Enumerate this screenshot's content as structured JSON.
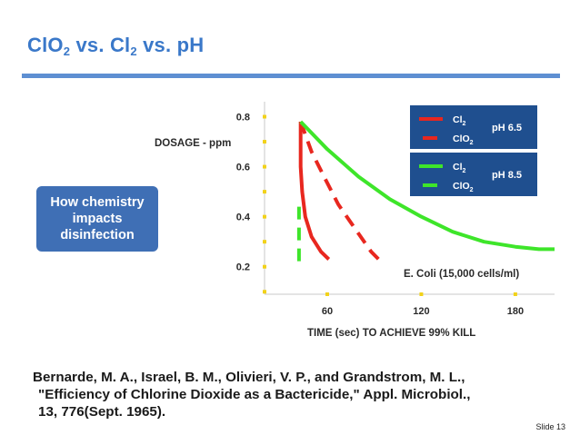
{
  "slide": {
    "title_parts": [
      "ClO",
      "2",
      " vs. Cl",
      "2",
      " vs. pH"
    ],
    "callout": [
      "How chemistry",
      "impacts",
      "disinfection"
    ],
    "citation": [
      "Bernarde, M. A., Israel, B. M., Olivieri, V. P., and Grandstrom, M. L.,",
      "\"Efficiency of Chlorine Dioxide as a Bactericide,\" Appl. Microbiol.,",
      "13, 776(Sept. 1965)."
    ],
    "slide_number": "Slide 13"
  },
  "chart_data": {
    "type": "line",
    "ylabel": "DOSAGE - ppm",
    "xlabel": "TIME (sec) TO ACHIEVE 99% KILL",
    "annotation": "E. Coli (15,000 cells/ml)",
    "x_ticks": [
      60,
      120,
      180
    ],
    "x_tick_labels": [
      "60",
      "120",
      "180"
    ],
    "y_ticks": [
      0.2,
      0.4,
      0.6,
      0.8
    ],
    "y_tick_labels": [
      "0.2",
      "0.4",
      "0.6",
      "0.8"
    ],
    "xlim": [
      20,
      205
    ],
    "ylim": [
      0.09,
      0.86
    ],
    "legend": {
      "position": "top-right",
      "background": "#1f4f8f",
      "groups": [
        {
          "ph_label": "pH 6.5",
          "entries": [
            {
              "label": "Cl",
              "sub": "2",
              "color": "#e8271f",
              "dash": false
            },
            {
              "label": "ClO",
              "sub": "2",
              "color": "#e8271f",
              "dash": true
            }
          ]
        },
        {
          "ph_label": "pH 8.5",
          "entries": [
            {
              "label": "Cl",
              "sub": "2",
              "color": "#3ee52a",
              "dash": false
            },
            {
              "label": "ClO",
              "sub": "2",
              "color": "#3ee52a",
              "dash": true
            }
          ]
        }
      ]
    },
    "series": [
      {
        "ph": "pH 6.5",
        "agent": "Cl2",
        "color": "#e8271f",
        "dash": false,
        "points": [
          [
            43,
            0.78
          ],
          [
            43,
            0.6
          ],
          [
            44,
            0.5
          ],
          [
            46,
            0.4
          ],
          [
            50,
            0.32
          ],
          [
            56,
            0.26
          ],
          [
            61,
            0.23
          ]
        ]
      },
      {
        "ph": "pH 6.5",
        "agent": "ClO2",
        "color": "#e8271f",
        "dash": true,
        "points": [
          [
            43,
            0.78
          ],
          [
            50,
            0.66
          ],
          [
            58,
            0.56
          ],
          [
            67,
            0.45
          ],
          [
            78,
            0.35
          ],
          [
            88,
            0.26
          ],
          [
            96,
            0.21
          ]
        ]
      },
      {
        "ph": "pH 8.5",
        "agent": "Cl2",
        "color": "#3ee52a",
        "dash": false,
        "points": [
          [
            43,
            0.78
          ],
          [
            60,
            0.67
          ],
          [
            80,
            0.56
          ],
          [
            100,
            0.47
          ],
          [
            120,
            0.4
          ],
          [
            140,
            0.34
          ],
          [
            160,
            0.3
          ],
          [
            180,
            0.28
          ],
          [
            195,
            0.27
          ],
          [
            205,
            0.27
          ]
        ]
      },
      {
        "ph": "pH 8.5",
        "agent": "ClO2",
        "color": "#3ee52a",
        "dash": true,
        "points": [
          [
            42,
            0.44
          ],
          [
            42,
            0.22
          ]
        ]
      }
    ]
  }
}
